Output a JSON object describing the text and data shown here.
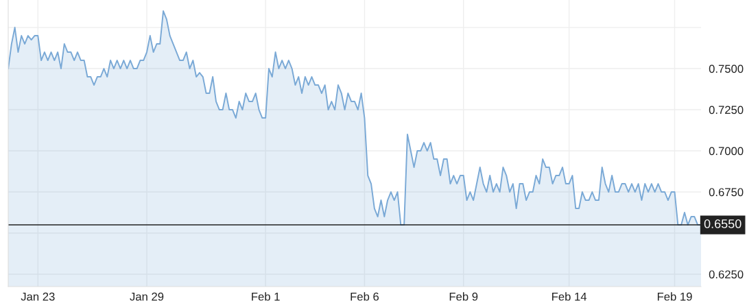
{
  "chart_data": {
    "type": "area",
    "categories": [
      null,
      null,
      null,
      null,
      null,
      null,
      null,
      null,
      null,
      "Jan 23",
      null,
      null,
      null,
      null,
      null,
      null,
      null,
      null,
      null,
      null,
      null,
      null,
      null,
      null,
      null,
      null,
      null,
      null,
      null,
      null,
      null,
      null,
      null,
      null,
      null,
      null,
      null,
      null,
      null,
      null,
      null,
      null,
      "Jan 29",
      null,
      null,
      null,
      null,
      null,
      null,
      null,
      null,
      null,
      null,
      null,
      null,
      null,
      null,
      null,
      null,
      null,
      null,
      null,
      null,
      null,
      null,
      null,
      null,
      null,
      null,
      null,
      null,
      null,
      null,
      null,
      null,
      null,
      null,
      null,
      "Feb 1",
      null,
      null,
      null,
      null,
      null,
      null,
      null,
      null,
      null,
      null,
      null,
      null,
      null,
      null,
      null,
      null,
      null,
      null,
      null,
      null,
      null,
      null,
      null,
      null,
      null,
      null,
      null,
      null,
      null,
      "Feb 6",
      null,
      null,
      null,
      null,
      null,
      null,
      null,
      null,
      null,
      null,
      null,
      null,
      null,
      null,
      null,
      null,
      null,
      null,
      null,
      null,
      null,
      null,
      null,
      null,
      null,
      null,
      null,
      null,
      null,
      "Feb 9",
      null,
      null,
      null,
      null,
      null,
      null,
      null,
      null,
      null,
      null,
      null,
      null,
      null,
      null,
      null,
      null,
      null,
      null,
      null,
      null,
      null,
      null,
      null,
      null,
      null,
      null,
      null,
      null,
      null,
      null,
      null,
      "Feb 14",
      null,
      null,
      null,
      null,
      null,
      null,
      null,
      null,
      null,
      null,
      null,
      null,
      null,
      null,
      null,
      null,
      null,
      null,
      null,
      null,
      null,
      null,
      null,
      null,
      null,
      null,
      null,
      null,
      null,
      null,
      null,
      "Feb 19",
      null,
      null,
      null,
      null,
      null,
      null,
      null,
      null
    ],
    "ylim": [
      0.6175,
      0.7917
    ],
    "yticks": [
      {
        "value": 0.625,
        "label": "0.6250"
      },
      {
        "value": 0.65,
        "label": null
      },
      {
        "value": 0.675,
        "label": "0.6750"
      },
      {
        "value": 0.7,
        "label": "0.7000"
      },
      {
        "value": 0.725,
        "label": "0.7250"
      },
      {
        "value": 0.75,
        "label": "0.7500"
      },
      {
        "value": 0.775,
        "label": null
      }
    ],
    "grid": true,
    "legend": false,
    "ref_lines": [
      {
        "axis": "y",
        "value": 0.655,
        "label": "0.6550",
        "color": "#222222"
      }
    ],
    "series": [
      {
        "color": "#7aa9d6",
        "values": [
          0.75,
          0.765,
          0.775,
          0.76,
          0.77,
          0.765,
          0.77,
          0.7675,
          0.77,
          0.77,
          0.755,
          0.76,
          0.755,
          0.76,
          0.755,
          0.76,
          0.75,
          0.765,
          0.76,
          0.76,
          0.755,
          0.76,
          0.755,
          0.755,
          0.745,
          0.745,
          0.74,
          0.745,
          0.745,
          0.75,
          0.745,
          0.755,
          0.75,
          0.755,
          0.75,
          0.755,
          0.75,
          0.755,
          0.75,
          0.75,
          0.755,
          0.755,
          0.76,
          0.77,
          0.76,
          0.765,
          0.765,
          0.785,
          0.78,
          0.77,
          0.765,
          0.76,
          0.755,
          0.755,
          0.76,
          0.75,
          0.755,
          0.745,
          0.7475,
          0.745,
          0.735,
          0.735,
          0.745,
          0.73,
          0.725,
          0.725,
          0.735,
          0.725,
          0.725,
          0.72,
          0.73,
          0.725,
          0.735,
          0.73,
          0.73,
          0.735,
          0.725,
          0.72,
          0.72,
          0.75,
          0.745,
          0.76,
          0.75,
          0.755,
          0.75,
          0.755,
          0.75,
          0.74,
          0.745,
          0.735,
          0.745,
          0.74,
          0.745,
          0.74,
          0.74,
          0.735,
          0.74,
          0.725,
          0.73,
          0.725,
          0.74,
          0.735,
          0.725,
          0.735,
          0.73,
          0.73,
          0.725,
          0.735,
          0.72,
          0.685,
          0.68,
          0.665,
          0.66,
          0.67,
          0.66,
          0.67,
          0.675,
          0.67,
          0.675,
          0.655,
          0.655,
          0.71,
          0.7,
          0.69,
          0.7,
          0.7,
          0.705,
          0.7,
          0.705,
          0.695,
          0.695,
          0.685,
          0.695,
          0.695,
          0.68,
          0.685,
          0.68,
          0.685,
          0.685,
          0.67,
          0.675,
          0.67,
          0.68,
          0.69,
          0.68,
          0.675,
          0.685,
          0.675,
          0.68,
          0.675,
          0.69,
          0.685,
          0.675,
          0.68,
          0.665,
          0.68,
          0.68,
          0.67,
          0.675,
          0.675,
          0.685,
          0.68,
          0.695,
          0.69,
          0.69,
          0.68,
          0.685,
          0.685,
          0.69,
          0.68,
          0.68,
          0.685,
          0.665,
          0.665,
          0.675,
          0.67,
          0.67,
          0.675,
          0.67,
          0.67,
          0.69,
          0.68,
          0.675,
          0.685,
          0.675,
          0.675,
          0.68,
          0.68,
          0.675,
          0.68,
          0.675,
          0.68,
          0.67,
          0.68,
          0.675,
          0.68,
          0.675,
          0.68,
          0.675,
          0.675,
          0.67,
          0.675,
          0.675,
          0.655,
          0.655,
          0.6625,
          0.655,
          0.66,
          0.66,
          0.655,
          0.655
        ]
      }
    ]
  }
}
